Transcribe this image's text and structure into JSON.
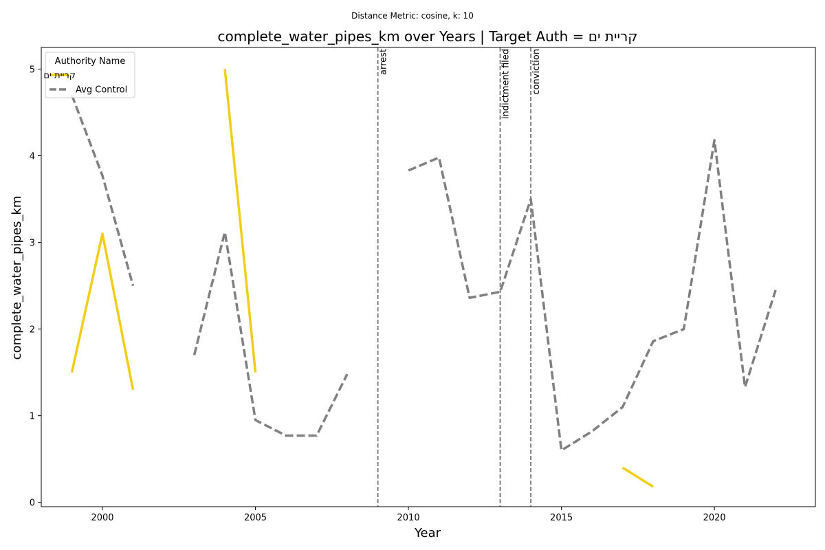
{
  "chart_data": {
    "type": "line",
    "suptitle": "Distance Metric: cosine, k: 10",
    "title": "complete_water_pipes_km over Years | Target Auth = קריית ים",
    "xlabel": "Year",
    "ylabel": "complete_water_pipes_km",
    "xlim": [
      1998,
      2023.3
    ],
    "ylim": [
      -0.05,
      5.25
    ],
    "xticks": [
      2000,
      2005,
      2010,
      2015,
      2020
    ],
    "yticks": [
      0,
      1,
      2,
      3,
      4,
      5
    ],
    "grid": false,
    "legend": {
      "title": "Authority Name",
      "position": "top-left"
    },
    "series": [
      {
        "name": "קריית ים",
        "color": "#f2ce1b",
        "style": "solid",
        "points": [
          [
            1999,
            1.5
          ],
          [
            2000,
            3.1
          ],
          [
            2001,
            1.3
          ],
          [
            2002,
            null
          ],
          [
            2003,
            null
          ],
          [
            2004,
            5.0
          ],
          [
            2005,
            1.5
          ],
          [
            2006,
            null
          ],
          [
            2007,
            null
          ],
          [
            2008,
            null
          ],
          [
            2009,
            null
          ],
          [
            2010,
            null
          ],
          [
            2011,
            null
          ],
          [
            2012,
            null
          ],
          [
            2013,
            null
          ],
          [
            2014,
            null
          ],
          [
            2015,
            null
          ],
          [
            2016,
            null
          ],
          [
            2017,
            0.4
          ],
          [
            2018,
            0.18
          ]
        ]
      },
      {
        "name": "Avg Control",
        "color": "#808080",
        "style": "dashed",
        "points": [
          [
            1999,
            4.7
          ],
          [
            2000,
            3.77
          ],
          [
            2001,
            2.5
          ],
          [
            2002,
            null
          ],
          [
            2003,
            1.7
          ],
          [
            2004,
            3.12
          ],
          [
            2005,
            0.95
          ],
          [
            2006,
            0.77
          ],
          [
            2007,
            0.77
          ],
          [
            2008,
            1.48
          ],
          [
            2009,
            null
          ],
          [
            2010,
            3.83
          ],
          [
            2011,
            3.98
          ],
          [
            2012,
            2.36
          ],
          [
            2013,
            2.43
          ],
          [
            2014,
            3.5
          ],
          [
            2015,
            0.6
          ],
          [
            2016,
            0.82
          ],
          [
            2017,
            1.1
          ],
          [
            2018,
            1.86
          ],
          [
            2019,
            2.0
          ],
          [
            2020,
            4.18
          ],
          [
            2021,
            1.33
          ],
          [
            2022,
            2.45
          ]
        ]
      }
    ],
    "events": [
      {
        "x": 2009,
        "label": "arrest"
      },
      {
        "x": 2013,
        "label": "indictment filed"
      },
      {
        "x": 2014,
        "label": "conviction"
      }
    ]
  }
}
